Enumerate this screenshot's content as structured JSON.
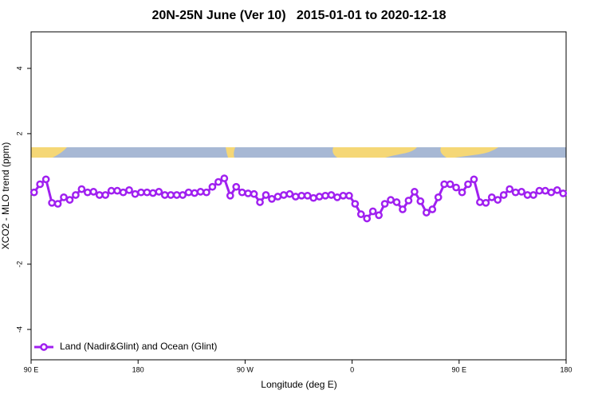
{
  "chart_data": {
    "type": "line",
    "title": "20N-25N June (Ver 10)   2015-01-01 to 2020-12-18",
    "x_label": "Longitude (deg E)",
    "y_label": "XCO2 - MLO trend (ppm)",
    "xlim": [
      90,
      540
    ],
    "xticks": [
      {
        "value": 90,
        "label": "90 E"
      },
      180,
      {
        "value": 270,
        "label": "90 W"
      },
      {
        "value": 360,
        "label": "0"
      },
      {
        "value": 450,
        "label": "90 E"
      },
      {
        "value": 540,
        "label": "180"
      }
    ],
    "ylim": [
      -4.93,
      5.12
    ],
    "yticks": [
      -4,
      -2,
      2,
      4
    ],
    "legend": "bottomleft",
    "x": [
      92.5,
      97.5,
      102.5,
      107.5,
      112.5,
      117.5,
      122.5,
      127.5,
      132.5,
      137.5,
      142.5,
      147.5,
      152.5,
      157.5,
      162.5,
      167.5,
      172.5,
      177.5,
      182.5,
      187.5,
      192.5,
      197.5,
      202.5,
      207.5,
      212.5,
      217.5,
      222.5,
      227.5,
      232.5,
      237.5,
      242.5,
      247.5,
      252.5,
      257.5,
      262.5,
      267.5,
      272.5,
      277.5,
      282.5,
      287.5,
      292.5,
      297.5,
      302.5,
      307.5,
      312.5,
      317.5,
      322.5,
      327.5,
      332.5,
      337.5,
      342.5,
      347.5,
      352.5,
      357.5,
      362.5,
      367.5,
      372.5,
      377.5,
      382.5,
      387.5,
      392.5,
      397.5,
      402.5,
      407.5,
      412.5,
      417.5,
      422.5,
      427.5,
      432.5,
      437.5,
      442.5,
      447.5,
      452.5,
      457.5,
      462.5,
      467.5,
      472.5,
      477.5,
      482.5,
      487.5,
      492.5,
      497.5,
      502.5,
      507.5,
      512.5,
      517.5,
      522.5,
      527.5,
      532.5,
      537.5
    ],
    "series": [
      {
        "name": "Land (Nadir&Glint) and Ocean (Glint)",
        "color": "#a020f0",
        "values": [
          0.2,
          0.45,
          0.6,
          -0.12,
          -0.15,
          0.05,
          -0.03,
          0.12,
          0.3,
          0.2,
          0.22,
          0.12,
          0.12,
          0.25,
          0.25,
          0.2,
          0.27,
          0.15,
          0.2,
          0.2,
          0.18,
          0.22,
          0.12,
          0.12,
          0.12,
          0.12,
          0.2,
          0.18,
          0.22,
          0.2,
          0.37,
          0.52,
          0.63,
          0.1,
          0.37,
          0.2,
          0.17,
          0.15,
          -0.1,
          0.12,
          0,
          0.07,
          0.12,
          0.15,
          0.07,
          0.1,
          0.1,
          0.03,
          0.07,
          0.1,
          0.12,
          0.05,
          0.1,
          0.1,
          -0.15,
          -0.47,
          -0.6,
          -0.38,
          -0.5,
          -0.15,
          -0.03,
          -0.1,
          -0.32,
          -0.05,
          0.22,
          -0.07,
          -0.42,
          -0.32,
          0.05,
          0.45,
          0.45,
          0.35,
          0.2,
          0.45,
          0.6,
          -0.1,
          -0.12,
          0.05,
          -0.03,
          0.12,
          0.3,
          0.2,
          0.22,
          0.12,
          0.12,
          0.25,
          0.25,
          0.2,
          0.27,
          0.17
        ]
      }
    ]
  }
}
